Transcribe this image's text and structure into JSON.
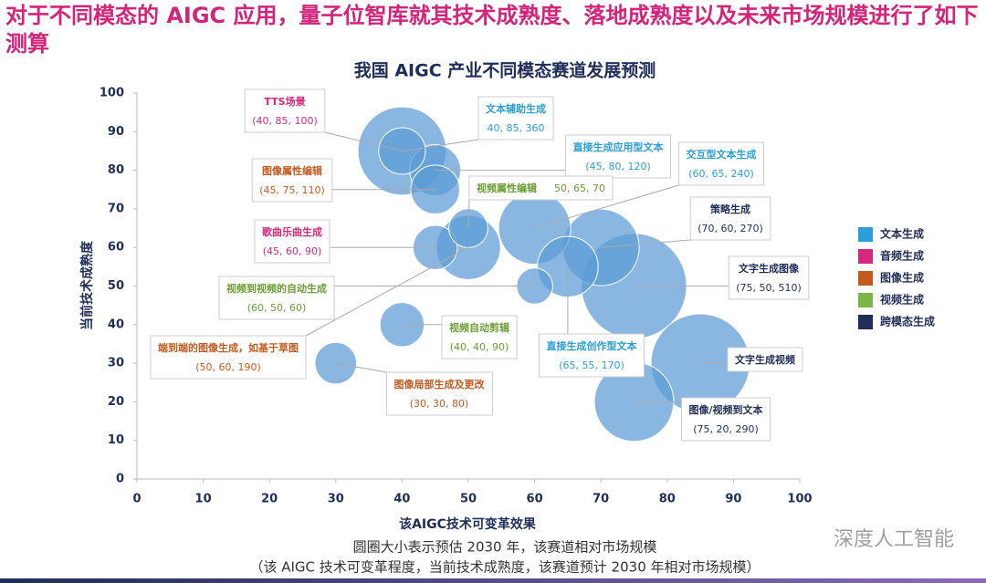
{
  "headline": "对于不同模态的 AIGC 应用，量子位智库就其技术成熟度、落地成熟度以及未来市场规模进行了如下测算",
  "watermark": "深度人工智能",
  "chart_data": {
    "type": "bubble",
    "title": "我国 AIGC 产业不同模态赛道发展预测",
    "x_label": "该AIGC技术可变革效果",
    "y_label": "当前技术成熟度",
    "notes": [
      "圆圈大小表示预估 2030 年，该赛道相对市场规模",
      "（该 AIGC 技术可变革程度，当前技术成熟度，该赛道预计 2030 年相对市场规模）"
    ],
    "xlim": [
      0,
      100
    ],
    "xticks": [
      0,
      10,
      20,
      30,
      40,
      50,
      60,
      70,
      80,
      90,
      100
    ],
    "ylim": [
      0,
      100
    ],
    "yticks": [
      0,
      10,
      20,
      30,
      40,
      50,
      60,
      70,
      80,
      90,
      100
    ],
    "bubble_color": "#5b9bd5",
    "legend_position": "right",
    "legend": [
      {
        "name": "文本生成",
        "color": "#2a9fd8"
      },
      {
        "name": "音频生成",
        "color": "#d6287f"
      },
      {
        "name": "图像生成",
        "color": "#c55a1f"
      },
      {
        "name": "视频生成",
        "color": "#7ab648"
      },
      {
        "name": "跨模态生成",
        "color": "#1f2d5a"
      }
    ],
    "bubbles": [
      {
        "name": "TTS场景",
        "x": 40,
        "y": 85,
        "size": 100,
        "value_label": "(40, 85, 100)",
        "label_color": "#d6287f"
      },
      {
        "name": "文本辅助生成",
        "x": 40,
        "y": 85,
        "size": 360,
        "value_label": "40, 85, 360",
        "label_color": "#2a9fd8"
      },
      {
        "name": "直接生成应用型文本",
        "x": 45,
        "y": 80,
        "size": 120,
        "value_label": "(45, 80, 120)",
        "label_color": "#2a9fd8"
      },
      {
        "name": "图像属性编辑",
        "x": 45,
        "y": 75,
        "size": 110,
        "value_label": "(45, 75, 110)",
        "label_color": "#c55a1f"
      },
      {
        "name": "视频属性编辑",
        "x": 50,
        "y": 65,
        "size": 70,
        "value_label": "50, 65, 70",
        "label_color": "#6a9e34"
      },
      {
        "name": "歌曲乐曲生成",
        "x": 45,
        "y": 60,
        "size": 90,
        "value_label": "(45, 60, 90)",
        "label_color": "#d6287f"
      },
      {
        "name": "视频到视频的自动生成",
        "x": 60,
        "y": 50,
        "size": 60,
        "value_label": "(60, 50, 60)",
        "label_color": "#6a9e34"
      },
      {
        "name": "端到端的图像生成，如基于草图",
        "x": 50,
        "y": 60,
        "size": 190,
        "value_label": "(50, 60, 190)",
        "label_color": "#c55a1f"
      },
      {
        "name": "视频自动剪辑",
        "x": 40,
        "y": 40,
        "size": 90,
        "value_label": "(40, 40, 90)",
        "label_color": "#6a9e34"
      },
      {
        "name": "图像局部生成及更改",
        "x": 30,
        "y": 30,
        "size": 80,
        "value_label": "(30, 30, 80)",
        "label_color": "#c55a1f"
      },
      {
        "name": "直接生成创作型文本",
        "x": 65,
        "y": 55,
        "size": 170,
        "value_label": "(65, 55, 170)",
        "label_color": "#2a9fd8"
      },
      {
        "name": "交互型文本生成",
        "x": 60,
        "y": 65,
        "size": 240,
        "value_label": "(60, 65, 240)",
        "label_color": "#2a9fd8"
      },
      {
        "name": "策略生成",
        "x": 70,
        "y": 60,
        "size": 270,
        "value_label": "(70, 60, 270)",
        "label_color": "#1f2d5a"
      },
      {
        "name": "文字生成图像",
        "x": 75,
        "y": 50,
        "size": 510,
        "value_label": "(75, 50, 510)",
        "label_color": "#1f2d5a"
      },
      {
        "name": "文字生成视频",
        "x": 85,
        "y": 30,
        "size": 450,
        "label_color": "#1f2d5a"
      },
      {
        "name": "图像/视频到文本",
        "x": 75,
        "y": 20,
        "size": 290,
        "value_label": "(75, 20, 290)",
        "label_color": "#1f2d5a"
      }
    ]
  }
}
